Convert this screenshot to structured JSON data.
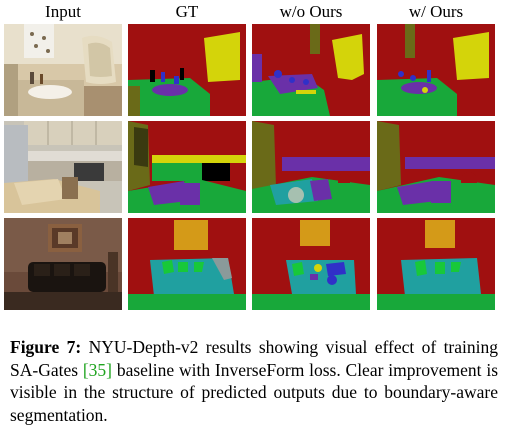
{
  "columns": [
    "Input",
    "GT",
    "w/o Ours",
    "w/ Ours"
  ],
  "caption": {
    "label": "Figure 7:",
    "text_before_cite": " NYU-Depth-v2 results showing visual effect of training SA-Gates ",
    "cite": "[35]",
    "text_after_cite": " baseline with InverseForm loss. Clear improvement is visible in the structure of predicted outputs due to boundary-aware segmentation."
  },
  "colors": {
    "wall": "#a01010",
    "yellow": "#d4d40a",
    "green": "#18a83a",
    "blue": "#3030c8",
    "purple": "#6a30a8",
    "olive": "#6a6a18",
    "teal": "#20a0a0",
    "orange": "#d49a18",
    "black": "#000000"
  }
}
